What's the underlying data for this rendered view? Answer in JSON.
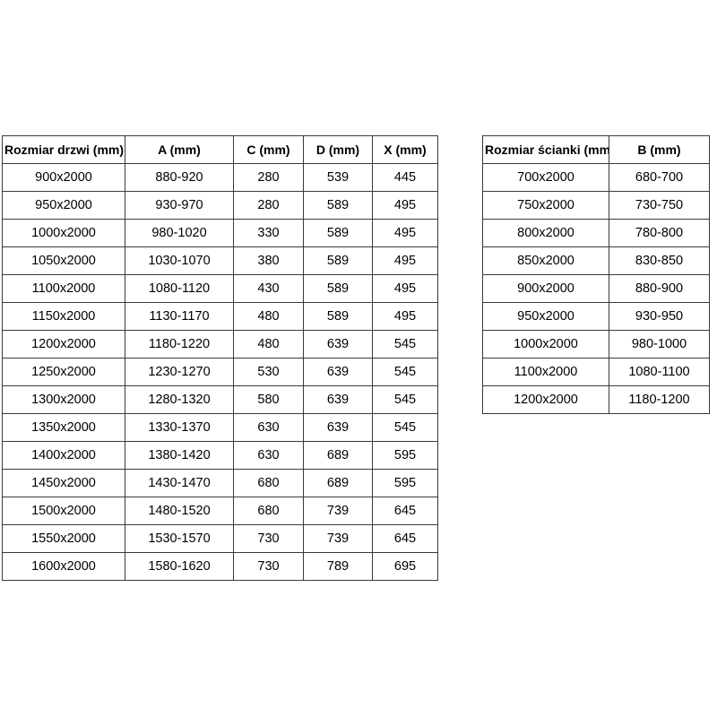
{
  "tables": {
    "doors": {
      "name": "door-sizes-table",
      "headers": [
        "Rozmiar drzwi (mm)",
        "A (mm)",
        "C (mm)",
        "D (mm)",
        "X (mm)"
      ],
      "rows": [
        [
          "900x2000",
          "880-920",
          "280",
          "539",
          "445"
        ],
        [
          "950x2000",
          "930-970",
          "280",
          "589",
          "495"
        ],
        [
          "1000x2000",
          "980-1020",
          "330",
          "589",
          "495"
        ],
        [
          "1050x2000",
          "1030-1070",
          "380",
          "589",
          "495"
        ],
        [
          "1100x2000",
          "1080-1120",
          "430",
          "589",
          "495"
        ],
        [
          "1150x2000",
          "1130-1170",
          "480",
          "589",
          "495"
        ],
        [
          "1200x2000",
          "1180-1220",
          "480",
          "639",
          "545"
        ],
        [
          "1250x2000",
          "1230-1270",
          "530",
          "639",
          "545"
        ],
        [
          "1300x2000",
          "1280-1320",
          "580",
          "639",
          "545"
        ],
        [
          "1350x2000",
          "1330-1370",
          "630",
          "639",
          "545"
        ],
        [
          "1400x2000",
          "1380-1420",
          "630",
          "689",
          "595"
        ],
        [
          "1450x2000",
          "1430-1470",
          "680",
          "689",
          "595"
        ],
        [
          "1500x2000",
          "1480-1520",
          "680",
          "739",
          "645"
        ],
        [
          "1550x2000",
          "1530-1570",
          "730",
          "739",
          "645"
        ],
        [
          "1600x2000",
          "1580-1620",
          "730",
          "789",
          "695"
        ]
      ]
    },
    "walls": {
      "name": "wall-sizes-table",
      "headers": [
        "Rozmiar ścianki (mm)",
        "B (mm)"
      ],
      "rows": [
        [
          "700x2000",
          "680-700"
        ],
        [
          "750x2000",
          "730-750"
        ],
        [
          "800x2000",
          "780-800"
        ],
        [
          "850x2000",
          "830-850"
        ],
        [
          "900x2000",
          "880-900"
        ],
        [
          "950x2000",
          "930-950"
        ],
        [
          "1000x2000",
          "980-1000"
        ],
        [
          "1100x2000",
          "1080-1100"
        ],
        [
          "1200x2000",
          "1180-1200"
        ]
      ]
    }
  },
  "colors": {
    "background": "#ffffff",
    "border": "#3a3a3a",
    "text": "#000000"
  }
}
